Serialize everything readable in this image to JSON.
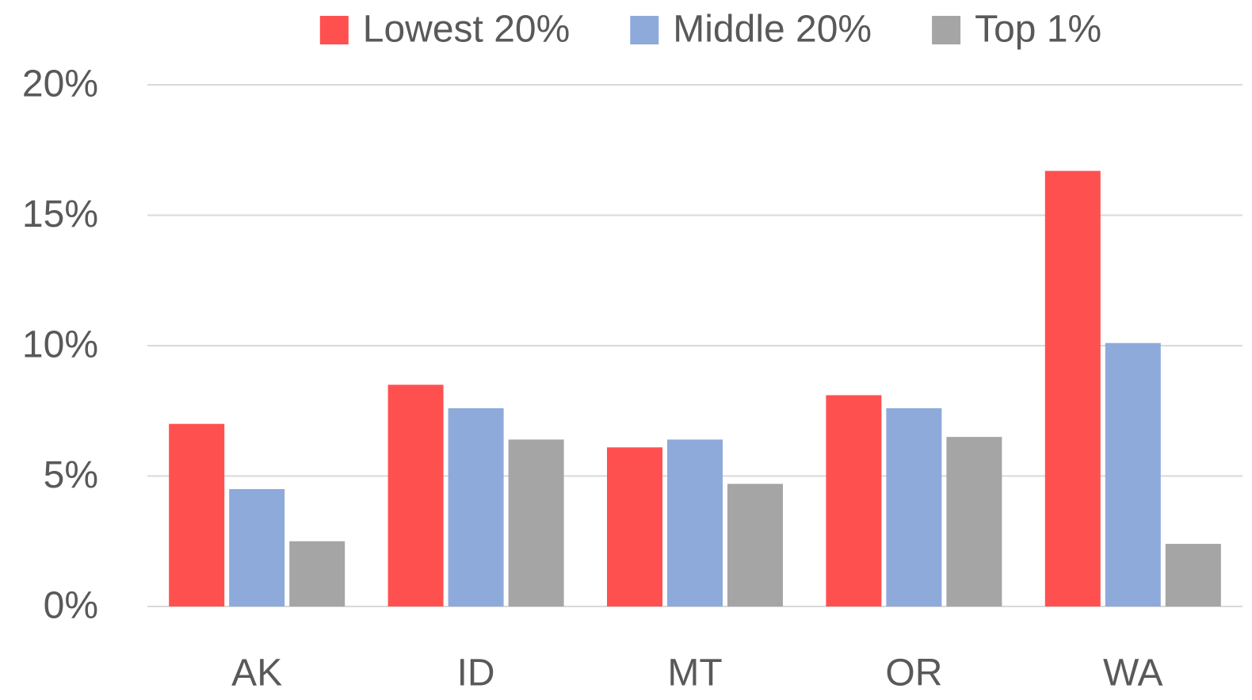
{
  "chart_data": {
    "type": "bar",
    "categories": [
      "AK",
      "ID",
      "MT",
      "OR",
      "WA"
    ],
    "series": [
      {
        "name": "Lowest 20%",
        "color": "#ff5050",
        "values": [
          7.0,
          8.5,
          6.1,
          8.1,
          16.7
        ]
      },
      {
        "name": "Middle 20%",
        "color": "#8eaadb",
        "values": [
          4.5,
          7.6,
          6.4,
          7.6,
          10.1
        ]
      },
      {
        "name": "Top 1%",
        "color": "#a5a5a5",
        "values": [
          2.5,
          6.4,
          4.7,
          6.5,
          2.4
        ]
      }
    ],
    "ylim": [
      0,
      20
    ],
    "yticks": [
      {
        "value": 0,
        "label": "0%"
      },
      {
        "value": 5,
        "label": "5%"
      },
      {
        "value": 10,
        "label": "10%"
      },
      {
        "value": 15,
        "label": "15%"
      },
      {
        "value": 20,
        "label": "20%"
      }
    ],
    "grid": true,
    "legend": "top"
  }
}
